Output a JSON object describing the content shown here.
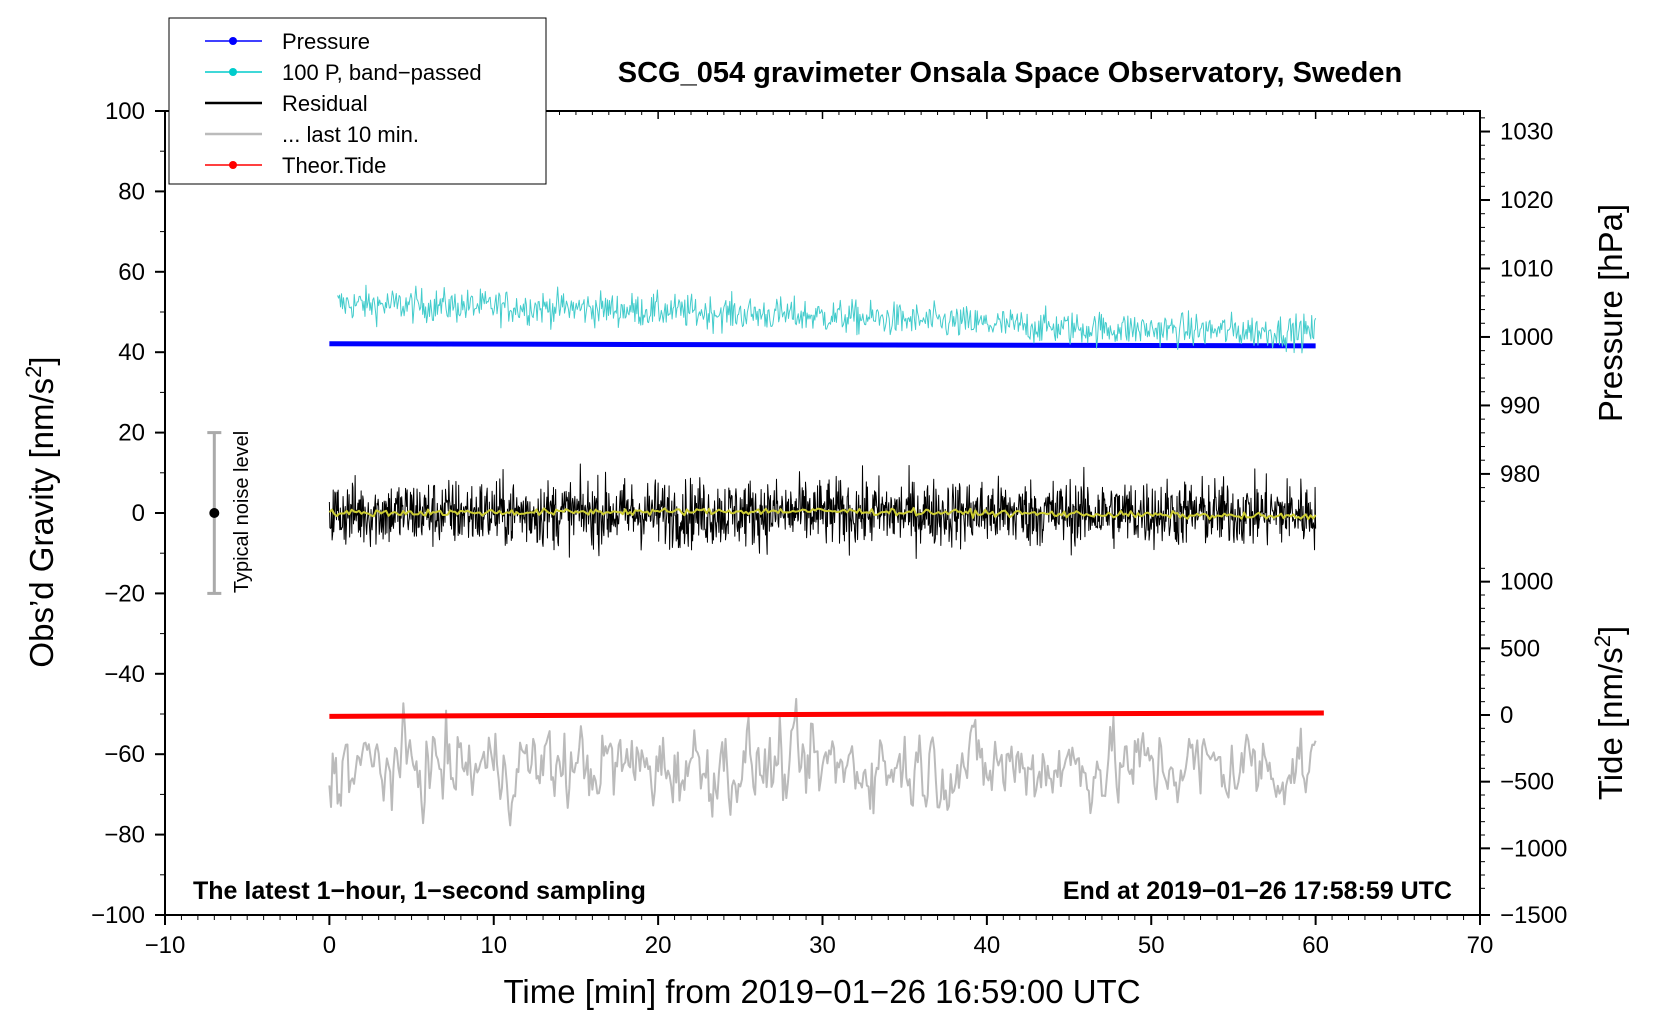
{
  "chart_data": {
    "type": "line",
    "title": "SCG_054 gravimeter Onsala Space Observatory, Sweden",
    "xlabel": "Time [min] from 2019−01−26 16:59:00 UTC",
    "ylabel_main": "Obs’d Gravity [nm/s",
    "ylabel_sup": "2",
    "ylabel_close": "]",
    "ylabel_pressure": "Pressure [hPa]",
    "ylabel_tide_main": "Tide [nm/s",
    "ylabel_tide_sup": "2",
    "ylabel_tide_close": "]",
    "xlim": [
      -10,
      70
    ],
    "ylim": [
      -100,
      100
    ],
    "pressure_lim": [
      974,
      1033
    ],
    "tide_lim": [
      -1500,
      1500
    ],
    "x_ticks": [
      -10,
      0,
      10,
      20,
      30,
      40,
      50,
      60,
      70
    ],
    "x_tick_labels": [
      "−10",
      "0",
      "10",
      "20",
      "30",
      "40",
      "50",
      "60",
      "70"
    ],
    "y_ticks": [
      -100,
      -80,
      -60,
      -40,
      -20,
      0,
      20,
      40,
      60,
      80,
      100
    ],
    "y_tick_labels": [
      "−100",
      "−80",
      "−60",
      "−40",
      "−20",
      "0",
      "20",
      "40",
      "60",
      "80",
      "100"
    ],
    "pressure_ticks": [
      980,
      990,
      1000,
      1010,
      1020,
      1030
    ],
    "pressure_tick_labels": [
      "980",
      "990",
      "1000",
      "1010",
      "1020",
      "1030"
    ],
    "tide_ticks": [
      -1500,
      -1000,
      -500,
      0,
      500,
      1000
    ],
    "tide_tick_labels": [
      "−1500",
      "−1000",
      "−500",
      "0",
      "500",
      "1000"
    ],
    "annotation_left": "The latest 1−hour, 1−second sampling",
    "annotation_right": "End at 2019−01−26 17:58:59 UTC",
    "noise_label": "Typical noise level",
    "noise_range": [
      -20,
      20
    ],
    "noise_x": -7,
    "legend": [
      {
        "label": "Pressure",
        "color": "#0000ff",
        "marker": true
      },
      {
        "label": "100 P, band−passed",
        "color": "#00cccc",
        "marker": true
      },
      {
        "label": "Residual",
        "color": "#000000",
        "marker": false
      },
      {
        "label": "... last 10 min.",
        "color": "#bbbbbb",
        "marker": false
      },
      {
        "label": "Theor.Tide",
        "color": "#ff0000",
        "marker": true
      }
    ],
    "series": [
      {
        "name": "Pressure",
        "axis": "pressure",
        "color": "#0000ff",
        "x": [
          0,
          20,
          40,
          60
        ],
        "values": [
          999.0,
          998.9,
          998.8,
          998.7
        ]
      },
      {
        "name": "100 P, band−passed",
        "axis": "gravity",
        "color": "#44cccc",
        "x": [
          0.5,
          15,
          30,
          45,
          60
        ],
        "values": [
          52,
          51,
          49,
          46,
          45
        ],
        "amplitude": 5
      },
      {
        "name": "Residual",
        "axis": "gravity",
        "color": "#000000",
        "x": [
          0,
          60
        ],
        "values": [
          0,
          0
        ],
        "amplitude": 10
      },
      {
        "name": "Residual smoothed",
        "axis": "gravity",
        "color": "#cccc33",
        "x": [
          0,
          30,
          60
        ],
        "values": [
          0,
          0.5,
          -1
        ]
      },
      {
        "name": "... last 10 min.",
        "axis": "gravity",
        "color": "#bbbbbb",
        "x": [
          0,
          60
        ],
        "values": [
          -63,
          -63
        ],
        "amplitude": 12
      },
      {
        "name": "Theor.Tide",
        "axis": "tide",
        "color": "#ff0000",
        "x": [
          0,
          30,
          60.5
        ],
        "values": [
          -10,
          5,
          15
        ]
      }
    ]
  }
}
